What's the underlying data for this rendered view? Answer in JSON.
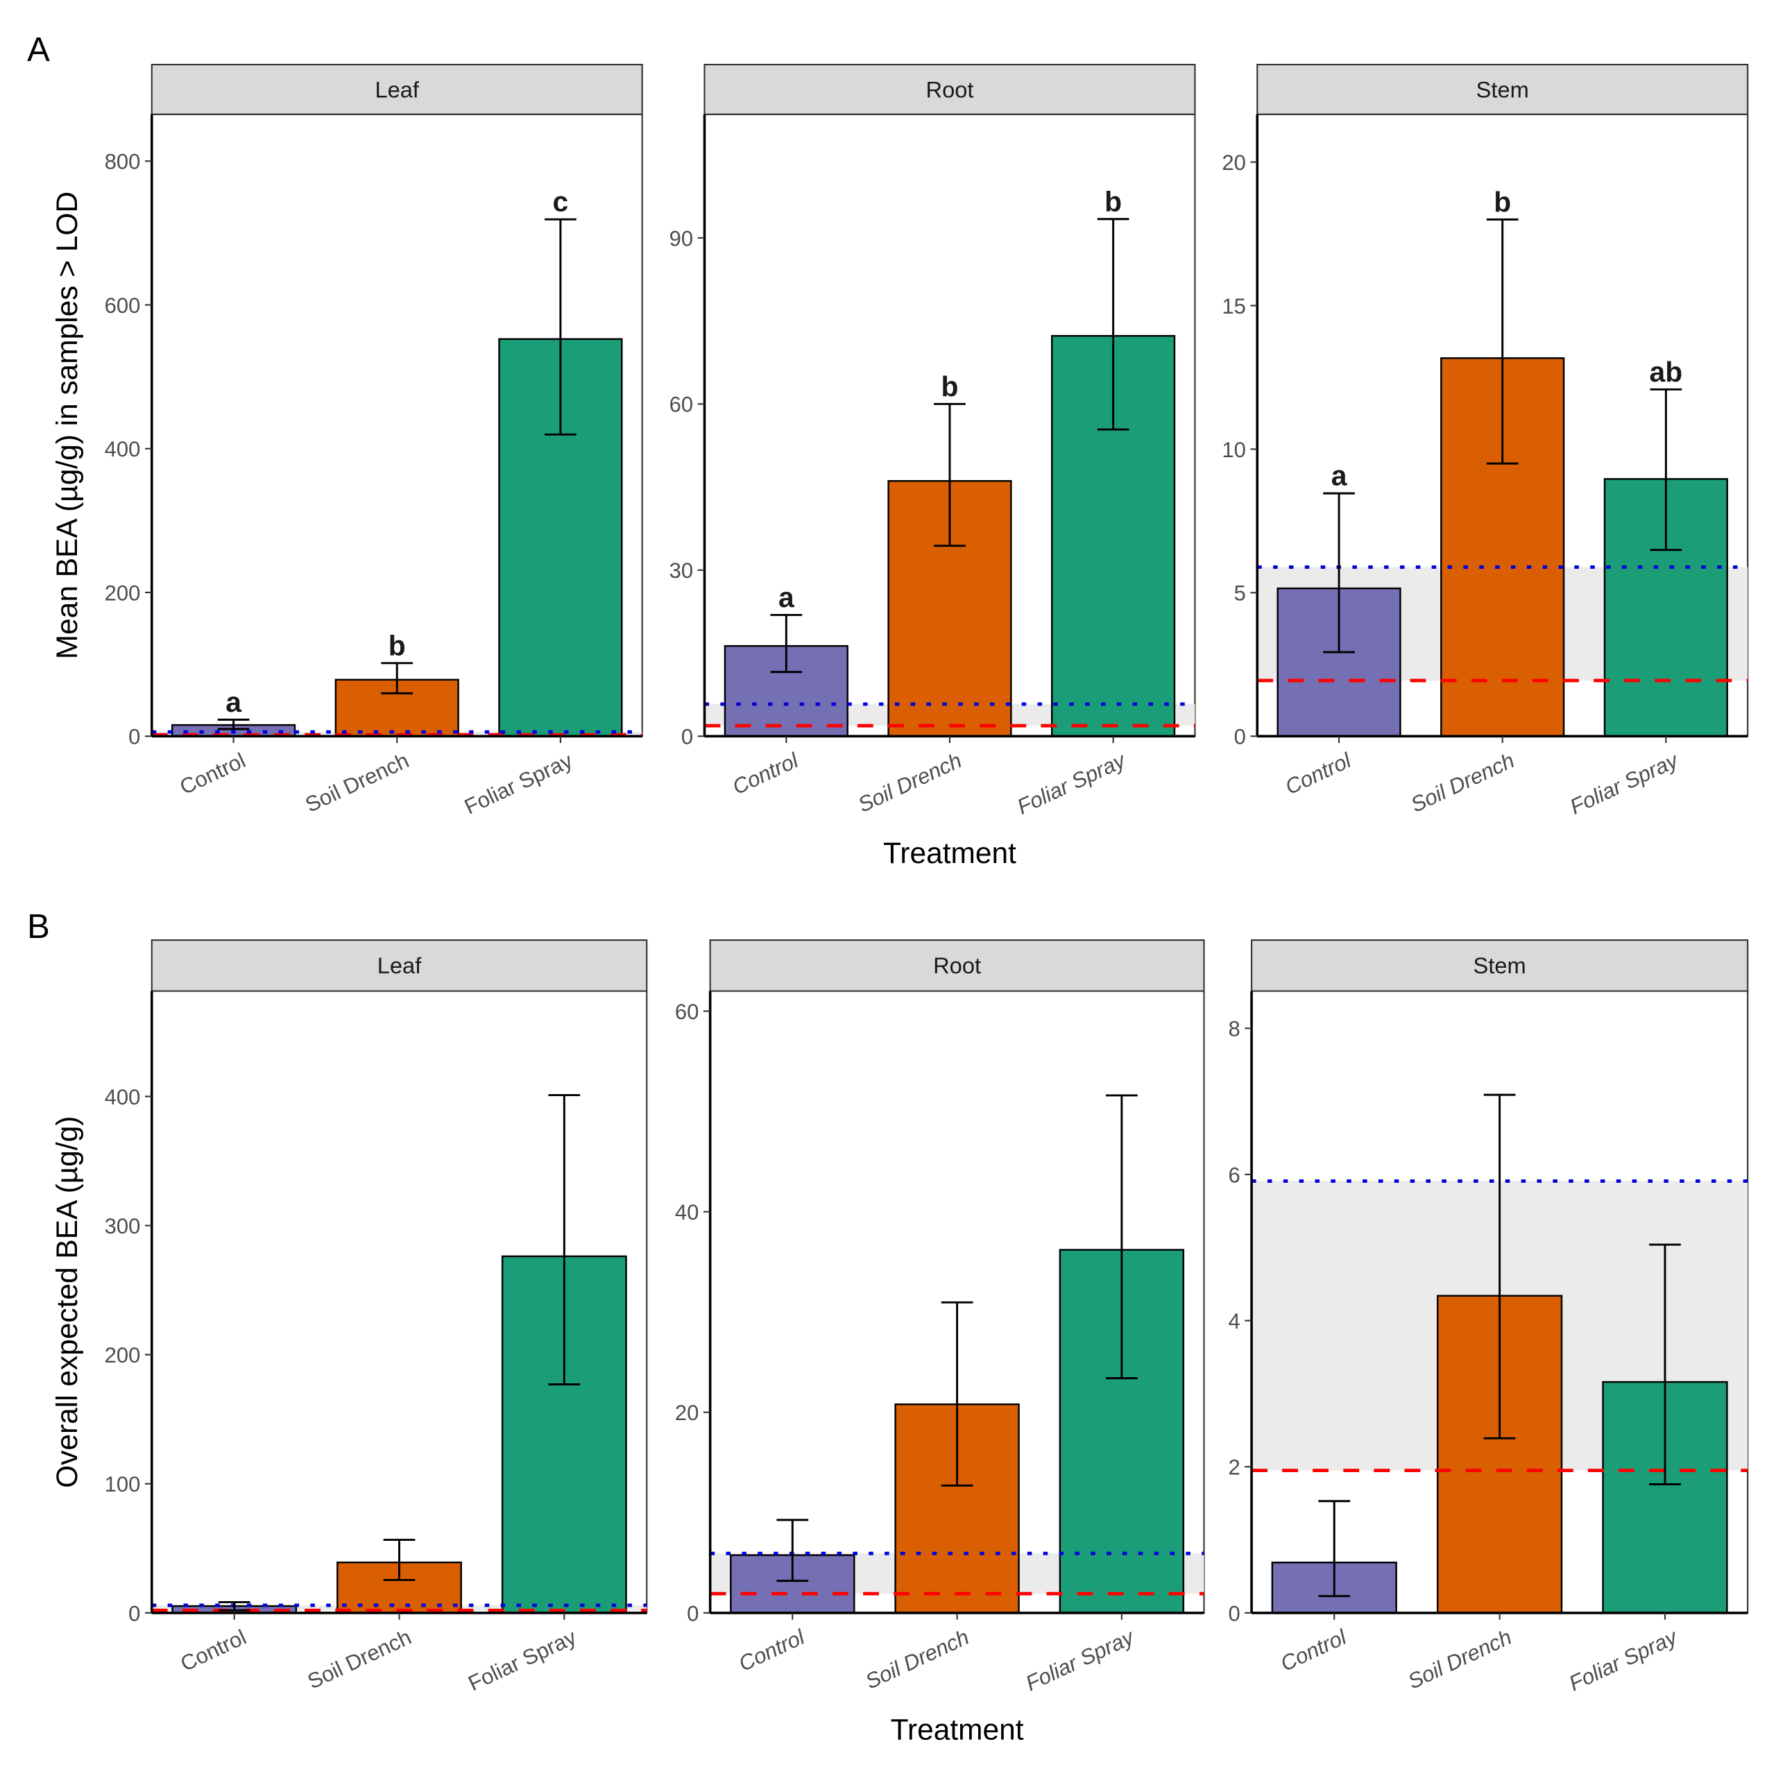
{
  "figure": {
    "panels": [
      "A",
      "B"
    ]
  },
  "colors": {
    "Control": "#7570b3",
    "Soil Drench": "#d95f02",
    "Foliar Spray": "#1b9e77",
    "lod_line": "#ff0000",
    "loq_line": "#0000dd",
    "band": "#ebebeb",
    "strip_fill": "#d9d9d9"
  },
  "chart_data": [
    {
      "panel": "A",
      "type": "bar",
      "xlabel": "Treatment",
      "ylabel": "Mean BEA (µg/g) in samples > LOD",
      "categories": [
        "Control",
        "Soil Drench",
        "Foliar Spray"
      ],
      "facets": [
        {
          "name": "Leaf",
          "ylim": [
            0,
            865
          ],
          "yticks": [
            0,
            200,
            400,
            600,
            800
          ],
          "values": [
            15.6,
            78.6,
            552.5
          ],
          "err_low": [
            10,
            59.7,
            419.7
          ],
          "err_high": [
            23,
            101.7,
            719
          ],
          "letters": [
            "a",
            "b",
            "c"
          ],
          "lod": 1.9,
          "loq": 5.9
        },
        {
          "name": "Root",
          "ylim": [
            0,
            112.3
          ],
          "yticks": [
            0,
            30,
            60,
            90
          ],
          "values": [
            16.3,
            46.1,
            72.3
          ],
          "err_low": [
            11.6,
            34.4,
            55.4
          ],
          "err_high": [
            21.9,
            60.0,
            93.4
          ],
          "letters": [
            "a",
            "b",
            "b"
          ],
          "lod": 1.9,
          "loq": 5.8
        },
        {
          "name": "Stem",
          "ylim": [
            0,
            21.66
          ],
          "yticks": [
            0,
            5,
            10,
            15,
            20
          ],
          "values": [
            5.15,
            13.17,
            8.96
          ],
          "err_low": [
            2.93,
            9.5,
            6.49
          ],
          "err_high": [
            8.46,
            18.0,
            12.08
          ],
          "letters": [
            "a",
            "b",
            "ab"
          ],
          "lod": 1.94,
          "loq": 5.89
        }
      ]
    },
    {
      "panel": "B",
      "type": "bar",
      "xlabel": "Treatment",
      "ylabel": "Overall expected BEA (µg/g)",
      "categories": [
        "Control",
        "Soil Drench",
        "Foliar Spray"
      ],
      "facets": [
        {
          "name": "Leaf",
          "ylim": [
            0,
            481.6
          ],
          "yticks": [
            0,
            100,
            200,
            300,
            400
          ],
          "values": [
            5.3,
            39.1,
            276.2
          ],
          "err_low": [
            2,
            25.5,
            177
          ],
          "err_high": [
            8.3,
            56.6,
            401
          ],
          "letters": [],
          "lod": 1.9,
          "loq": 5.9
        },
        {
          "name": "Root",
          "ylim": [
            0,
            62.0
          ],
          "yticks": [
            0,
            20,
            40,
            60
          ],
          "values": [
            5.76,
            20.8,
            36.2
          ],
          "err_low": [
            3.2,
            12.7,
            23.4
          ],
          "err_high": [
            9.27,
            30.96,
            51.6
          ],
          "letters": [],
          "lod": 1.92,
          "loq": 5.93
        },
        {
          "name": "Stem",
          "ylim": [
            0,
            8.51
          ],
          "yticks": [
            0,
            2,
            4,
            6,
            8
          ],
          "values": [
            0.69,
            4.34,
            3.16
          ],
          "err_low": [
            0.23,
            2.39,
            1.76
          ],
          "err_high": [
            1.53,
            7.09,
            5.04
          ],
          "letters": [],
          "lod": 1.95,
          "loq": 5.91
        }
      ]
    }
  ]
}
